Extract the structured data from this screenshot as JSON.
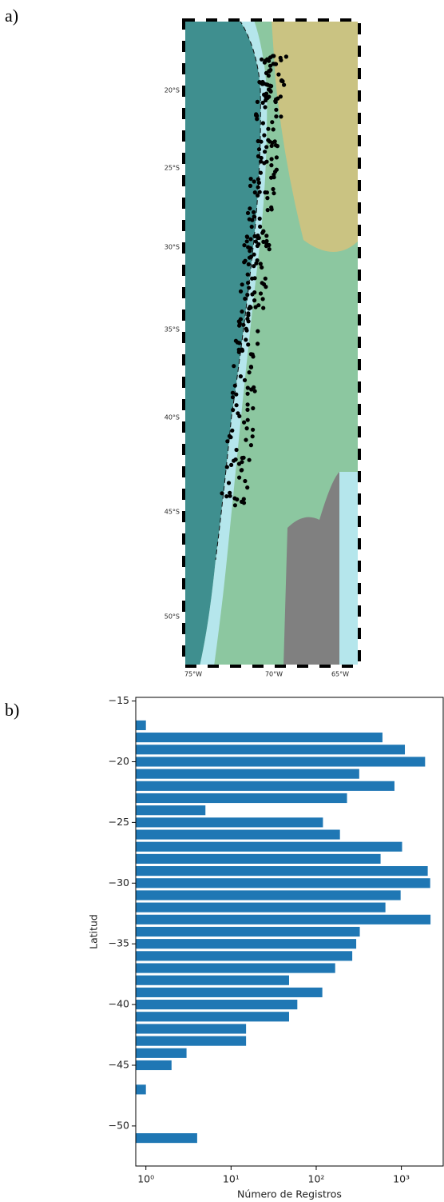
{
  "panels": {
    "a": "a)",
    "b": "b)"
  },
  "map": {
    "lat_labels": [
      "20°S",
      "25°S",
      "30°S",
      "35°S",
      "40°S",
      "45°S",
      "50°S"
    ],
    "lon_labels": [
      "75°W",
      "70°W",
      "65°W"
    ]
  },
  "chart_data": {
    "type": "barh",
    "y": [
      -17,
      -18,
      -19,
      -20,
      -21,
      -22,
      -23,
      -24,
      -25,
      -26,
      -27,
      -28,
      -29,
      -30,
      -31,
      -32,
      -33,
      -34,
      -35,
      -36,
      -37,
      -38,
      -39,
      -40,
      -41,
      -42,
      -43,
      -44,
      -45,
      -47,
      -51
    ],
    "values": [
      1,
      600,
      1100,
      1900,
      320,
      830,
      230,
      5,
      120,
      190,
      1020,
      570,
      2040,
      2180,
      980,
      650,
      2200,
      325,
      295,
      265,
      167,
      48,
      118,
      60,
      48,
      15,
      15,
      3,
      2,
      1,
      4
    ],
    "color": "#1f77b4",
    "bar_height": 0.8,
    "xlabel": "Número de Registros",
    "ylabel": "Latitud",
    "x_log": true,
    "xlim": [
      0.76,
      3100
    ],
    "xticks": [
      {
        "value": 1,
        "label": "10⁰"
      },
      {
        "value": 10,
        "label": "10¹"
      },
      {
        "value": 100,
        "label": "10²"
      },
      {
        "value": 1000,
        "label": "10³"
      }
    ],
    "ylim": [
      -53.3,
      -14.7
    ],
    "yticks": [
      {
        "value": -15,
        "label": "−15"
      },
      {
        "value": -20,
        "label": "−20"
      },
      {
        "value": -25,
        "label": "−25"
      },
      {
        "value": -30,
        "label": "−30"
      },
      {
        "value": -35,
        "label": "−35"
      },
      {
        "value": -40,
        "label": "−40"
      },
      {
        "value": -45,
        "label": "−45"
      },
      {
        "value": -50,
        "label": "−50"
      }
    ]
  }
}
